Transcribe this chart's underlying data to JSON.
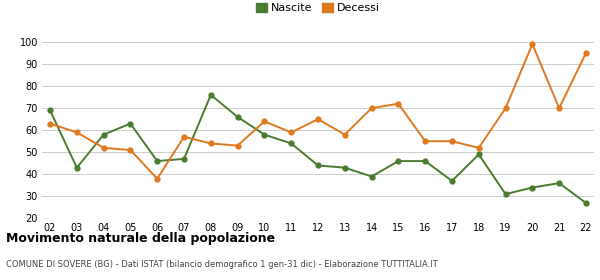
{
  "years": [
    "02",
    "03",
    "04",
    "05",
    "06",
    "07",
    "08",
    "09",
    "10",
    "11",
    "12",
    "13",
    "14",
    "15",
    "16",
    "17",
    "18",
    "19",
    "20",
    "21",
    "22"
  ],
  "nascite": [
    69,
    43,
    58,
    63,
    46,
    47,
    76,
    66,
    58,
    54,
    44,
    43,
    39,
    46,
    46,
    37,
    49,
    31,
    34,
    36,
    27
  ],
  "decessi": [
    63,
    59,
    52,
    51,
    38,
    57,
    54,
    53,
    64,
    59,
    65,
    58,
    70,
    72,
    55,
    55,
    52,
    70,
    99,
    70,
    95
  ],
  "nascite_color": "#4a7c2f",
  "decessi_color": "#e07820",
  "title": "Movimento naturale della popolazione",
  "subtitle": "COMUNE DI SOVERE (BG) - Dati ISTAT (bilancio demografico 1 gen-31 dic) - Elaborazione TUTTITALIA.IT",
  "ylim": [
    20,
    100
  ],
  "yticks": [
    20,
    30,
    40,
    50,
    60,
    70,
    80,
    90,
    100
  ],
  "legend_nascite": "Nascite",
  "legend_decessi": "Decessi",
  "background_color": "#ffffff",
  "grid_color": "#cccccc"
}
